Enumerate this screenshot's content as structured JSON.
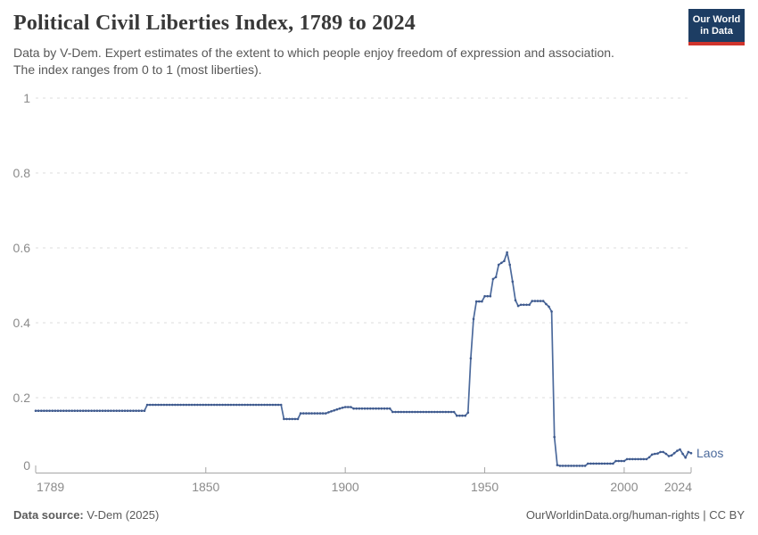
{
  "header": {
    "title": "Political Civil Liberties Index, 1789 to 2024",
    "subtitle_line1": "Data by V-Dem. Expert estimates of the extent to which people enjoy freedom of expression and association.",
    "subtitle_line2": "The index ranges from 0 to 1 (most liberties).",
    "logo": {
      "line1": "Our World",
      "line2": "in Data",
      "bg_color": "#1d3d63",
      "accent_color": "#d0342c"
    }
  },
  "footer": {
    "source_label": "Data source:",
    "source_value": " V-Dem (2025)",
    "link": "OurWorldinData.org/human-rights",
    "license": " | CC BY"
  },
  "chart_data": {
    "type": "line",
    "title": "Political Civil Liberties Index, 1789 to 2024",
    "xlabel": "",
    "ylabel": "",
    "xlim": [
      1789,
      2024
    ],
    "ylim": [
      0,
      1
    ],
    "yticks": [
      0,
      0.2,
      0.4,
      0.6,
      0.8,
      1
    ],
    "ytick_labels": [
      "0",
      "0.2",
      "0.4",
      "0.6",
      "0.8",
      "1"
    ],
    "xticks": [
      1789,
      1850,
      1900,
      1950,
      2000,
      2024
    ],
    "xtick_labels": [
      "1789",
      "1850",
      "1900",
      "1950",
      "2000",
      "2024"
    ],
    "grid": "dashed-horizontal",
    "legend_position": "end-of-line-label",
    "entity_label": "Laos",
    "line_color": "#4c6a9c",
    "marker_color": "#3f5a8e",
    "axis_color": "#a5a5a5",
    "grid_color": "#dcdcdc",
    "tick_label_color": "#8b8b8b",
    "series": [
      {
        "name": "Laos",
        "interpolation": "linear-between-breakpoints-yearly",
        "points": [
          [
            1789,
            0.165
          ],
          [
            1828,
            0.165
          ],
          [
            1829,
            0.181
          ],
          [
            1877,
            0.181
          ],
          [
            1878,
            0.143
          ],
          [
            1883,
            0.143
          ],
          [
            1884,
            0.158
          ],
          [
            1893,
            0.158
          ],
          [
            1894,
            0.161
          ],
          [
            1896,
            0.166
          ],
          [
            1898,
            0.171
          ],
          [
            1900,
            0.175
          ],
          [
            1902,
            0.175
          ],
          [
            1903,
            0.171
          ],
          [
            1916,
            0.171
          ],
          [
            1917,
            0.162
          ],
          [
            1939,
            0.162
          ],
          [
            1940,
            0.152
          ],
          [
            1943,
            0.152
          ],
          [
            1944,
            0.16
          ],
          [
            1945,
            0.305
          ],
          [
            1946,
            0.41
          ],
          [
            1947,
            0.457
          ],
          [
            1949,
            0.457
          ],
          [
            1950,
            0.471
          ],
          [
            1952,
            0.471
          ],
          [
            1953,
            0.517
          ],
          [
            1954,
            0.522
          ],
          [
            1955,
            0.555
          ],
          [
            1956,
            0.56
          ],
          [
            1957,
            0.565
          ],
          [
            1958,
            0.588
          ],
          [
            1959,
            0.555
          ],
          [
            1960,
            0.51
          ],
          [
            1961,
            0.46
          ],
          [
            1962,
            0.445
          ],
          [
            1963,
            0.448
          ],
          [
            1966,
            0.448
          ],
          [
            1967,
            0.458
          ],
          [
            1971,
            0.458
          ],
          [
            1972,
            0.45
          ],
          [
            1973,
            0.443
          ],
          [
            1974,
            0.43
          ],
          [
            1975,
            0.095
          ],
          [
            1976,
            0.02
          ],
          [
            1977,
            0.018
          ],
          [
            1986,
            0.018
          ],
          [
            1987,
            0.024
          ],
          [
            1996,
            0.024
          ],
          [
            1997,
            0.031
          ],
          [
            2000,
            0.031
          ],
          [
            2001,
            0.036
          ],
          [
            2008,
            0.036
          ],
          [
            2009,
            0.041
          ],
          [
            2010,
            0.048
          ],
          [
            2011,
            0.05
          ],
          [
            2012,
            0.051
          ],
          [
            2013,
            0.055
          ],
          [
            2014,
            0.055
          ],
          [
            2015,
            0.05
          ],
          [
            2016,
            0.044
          ],
          [
            2017,
            0.046
          ],
          [
            2018,
            0.052
          ],
          [
            2019,
            0.058
          ],
          [
            2020,
            0.062
          ],
          [
            2021,
            0.05
          ],
          [
            2022,
            0.04
          ],
          [
            2023,
            0.055
          ],
          [
            2024,
            0.052
          ]
        ]
      }
    ]
  }
}
